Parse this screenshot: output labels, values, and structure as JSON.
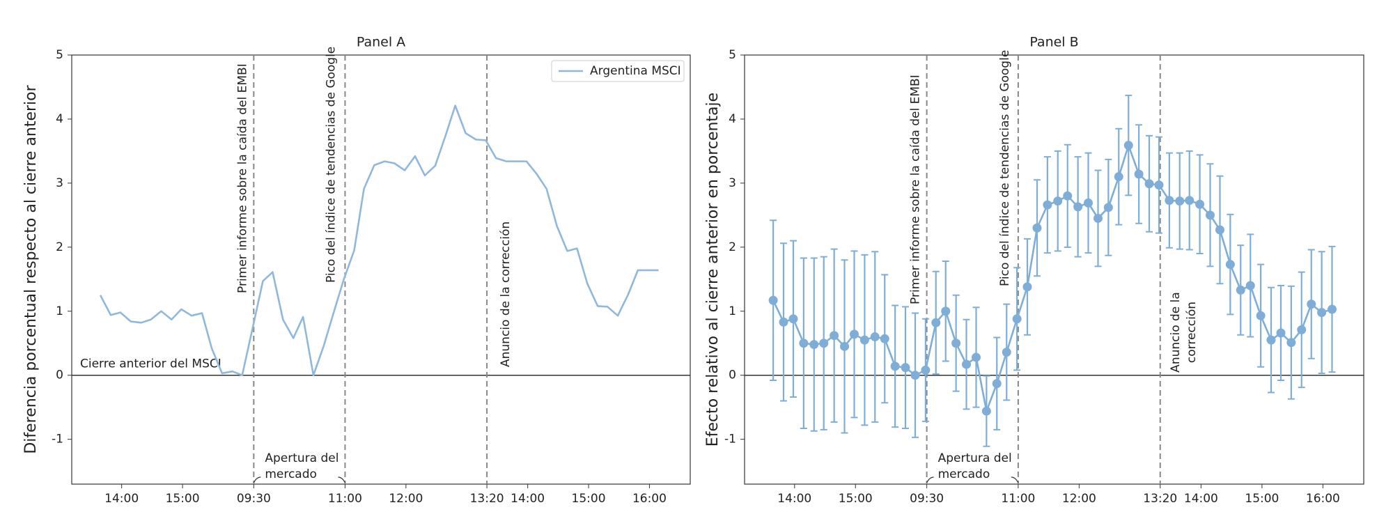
{
  "chart_data": [
    {
      "type": "line",
      "title": "Panel A",
      "ylabel": "Diferencia porcentual respecto al cierre anterior",
      "x": [
        13.65,
        13.82,
        13.98,
        14.15,
        14.32,
        14.48,
        14.65,
        14.82,
        14.98,
        15.15,
        15.32,
        15.48,
        15.65,
        15.82,
        15.98,
        16.15,
        16.32,
        16.48,
        16.65,
        16.82,
        16.98,
        17.15,
        17.32,
        17.48,
        17.65,
        17.82,
        17.98,
        18.15,
        18.32,
        18.48,
        18.65,
        18.82,
        18.98,
        19.15,
        19.32,
        19.48,
        19.65,
        19.82,
        19.98,
        20.15,
        20.32,
        20.48,
        20.65,
        20.82,
        20.98,
        21.15,
        21.32,
        21.48,
        21.65,
        21.82,
        21.98,
        22.15,
        22.32,
        22.48,
        22.65,
        22.82
      ],
      "series": [
        {
          "name": "Argentina MSCI",
          "color": "#8fb8dc",
          "values": [
            1.25,
            0.94,
            0.98,
            0.84,
            0.82,
            0.87,
            1.0,
            0.87,
            1.03,
            0.93,
            0.97,
            0.42,
            0.03,
            0.06,
            0.0,
            0.73,
            1.47,
            1.61,
            0.87,
            0.58,
            0.91,
            0.0,
            0.46,
            0.97,
            1.5,
            1.95,
            2.91,
            3.28,
            3.34,
            3.31,
            3.2,
            3.42,
            3.12,
            3.27,
            3.74,
            4.21,
            3.78,
            3.68,
            3.67,
            3.39,
            3.34,
            3.34,
            3.34,
            3.14,
            2.91,
            2.33,
            1.94,
            1.98,
            1.43,
            1.08,
            1.07,
            0.93,
            1.26,
            1.64,
            1.64,
            1.64
          ]
        }
      ],
      "xlim": [
        13.18,
        23.34
      ],
      "xticks": [
        {
          "value": 14,
          "label": "14:00"
        },
        {
          "value": 15,
          "label": "15:00"
        },
        {
          "value": 16.17,
          "label": "09:30"
        },
        {
          "value": 17.67,
          "label": "11:00"
        },
        {
          "value": 18.67,
          "label": "12:00"
        },
        {
          "value": 20,
          "label": "13:20"
        },
        {
          "value": 20.67,
          "label": "14:00"
        },
        {
          "value": 21.67,
          "label": "15:00"
        },
        {
          "value": 22.67,
          "label": "16:00"
        }
      ],
      "ylim": [
        -1.7,
        5
      ],
      "yticks": [
        -1,
        0,
        1,
        2,
        3,
        4,
        5
      ],
      "hline": 0,
      "vlines": [
        {
          "x": 16.17,
          "label": [
            "Primer informe sobre la caída del EMBI"
          ]
        },
        {
          "x": 17.67,
          "label": [
            "Pico del índice de tendencias de Google"
          ]
        },
        {
          "x": 20,
          "label": [
            "Anuncio de la corrección"
          ]
        }
      ],
      "baseline_label": "Cierre anterior del MSCI",
      "open_label": [
        "Apertura del",
        "mercado"
      ],
      "legend": "upper right"
    },
    {
      "type": "errorbar",
      "title": "Panel B",
      "ylabel": "Efecto relativo al cierre anterior en porcentaje",
      "x": [
        13.65,
        13.82,
        13.98,
        14.15,
        14.32,
        14.48,
        14.65,
        14.82,
        14.98,
        15.15,
        15.32,
        15.48,
        15.65,
        15.82,
        15.98,
        16.15,
        16.32,
        16.48,
        16.65,
        16.82,
        16.98,
        17.15,
        17.32,
        17.48,
        17.65,
        17.82,
        17.98,
        18.15,
        18.32,
        18.48,
        18.65,
        18.82,
        18.98,
        19.15,
        19.32,
        19.48,
        19.65,
        19.82,
        19.98,
        20.15,
        20.32,
        20.48,
        20.65,
        20.82,
        20.98,
        21.15,
        21.32,
        21.48,
        21.65,
        21.82,
        21.98,
        22.15,
        22.32,
        22.48,
        22.65,
        22.82
      ],
      "series": [
        {
          "color": "#7eaed8",
          "values": [
            1.17,
            0.83,
            0.88,
            0.5,
            0.48,
            0.5,
            0.62,
            0.45,
            0.64,
            0.55,
            0.6,
            0.57,
            0.14,
            0.12,
            0.0,
            0.08,
            0.82,
            1.0,
            0.5,
            0.17,
            0.28,
            -0.56,
            -0.13,
            0.36,
            0.88,
            1.38,
            2.3,
            2.66,
            2.72,
            2.8,
            2.63,
            2.69,
            2.45,
            2.62,
            3.1,
            3.59,
            3.14,
            2.99,
            2.97,
            2.73,
            2.72,
            2.73,
            2.67,
            2.5,
            2.27,
            1.73,
            1.33,
            1.4,
            0.93,
            0.55,
            0.66,
            0.51,
            0.71,
            1.11,
            0.98,
            1.03
          ],
          "errors": [
            1.25,
            1.23,
            1.22,
            1.33,
            1.35,
            1.35,
            1.35,
            1.35,
            1.3,
            1.33,
            1.33,
            1.0,
            0.95,
            0.95,
            0.97,
            0.8,
            0.8,
            0.78,
            0.75,
            0.7,
            0.78,
            0.55,
            0.72,
            0.75,
            0.8,
            0.75,
            0.75,
            0.75,
            0.78,
            0.8,
            0.78,
            0.78,
            0.75,
            0.75,
            0.75,
            0.78,
            0.77,
            0.75,
            0.75,
            0.74,
            0.75,
            0.77,
            0.77,
            0.8,
            0.84,
            0.78,
            0.7,
            0.8,
            0.8,
            0.82,
            0.74,
            0.88,
            0.9,
            0.85,
            0.95,
            0.98
          ]
        }
      ],
      "xlim": [
        13.18,
        23.34
      ],
      "xticks": [
        {
          "value": 14,
          "label": "14:00"
        },
        {
          "value": 15,
          "label": "15:00"
        },
        {
          "value": 16.17,
          "label": "09:30"
        },
        {
          "value": 17.67,
          "label": "11:00"
        },
        {
          "value": 18.67,
          "label": "12:00"
        },
        {
          "value": 20,
          "label": "13:20"
        },
        {
          "value": 20.67,
          "label": "14:00"
        },
        {
          "value": 21.67,
          "label": "15:00"
        },
        {
          "value": 22.67,
          "label": "16:00"
        }
      ],
      "ylim": [
        -1.7,
        5
      ],
      "yticks": [
        -1,
        0,
        1,
        2,
        3,
        4,
        5
      ],
      "hline": 0,
      "vlines": [
        {
          "x": 16.17,
          "label": [
            "Primer informe sobre la caída del EMBI"
          ]
        },
        {
          "x": 17.67,
          "label": [
            "Pico del índice de tendencias de Google"
          ]
        },
        {
          "x": 20,
          "label": [
            "Anuncio de la",
            "corrección"
          ]
        }
      ],
      "open_label": [
        "Apertura del",
        "mercado"
      ]
    }
  ]
}
